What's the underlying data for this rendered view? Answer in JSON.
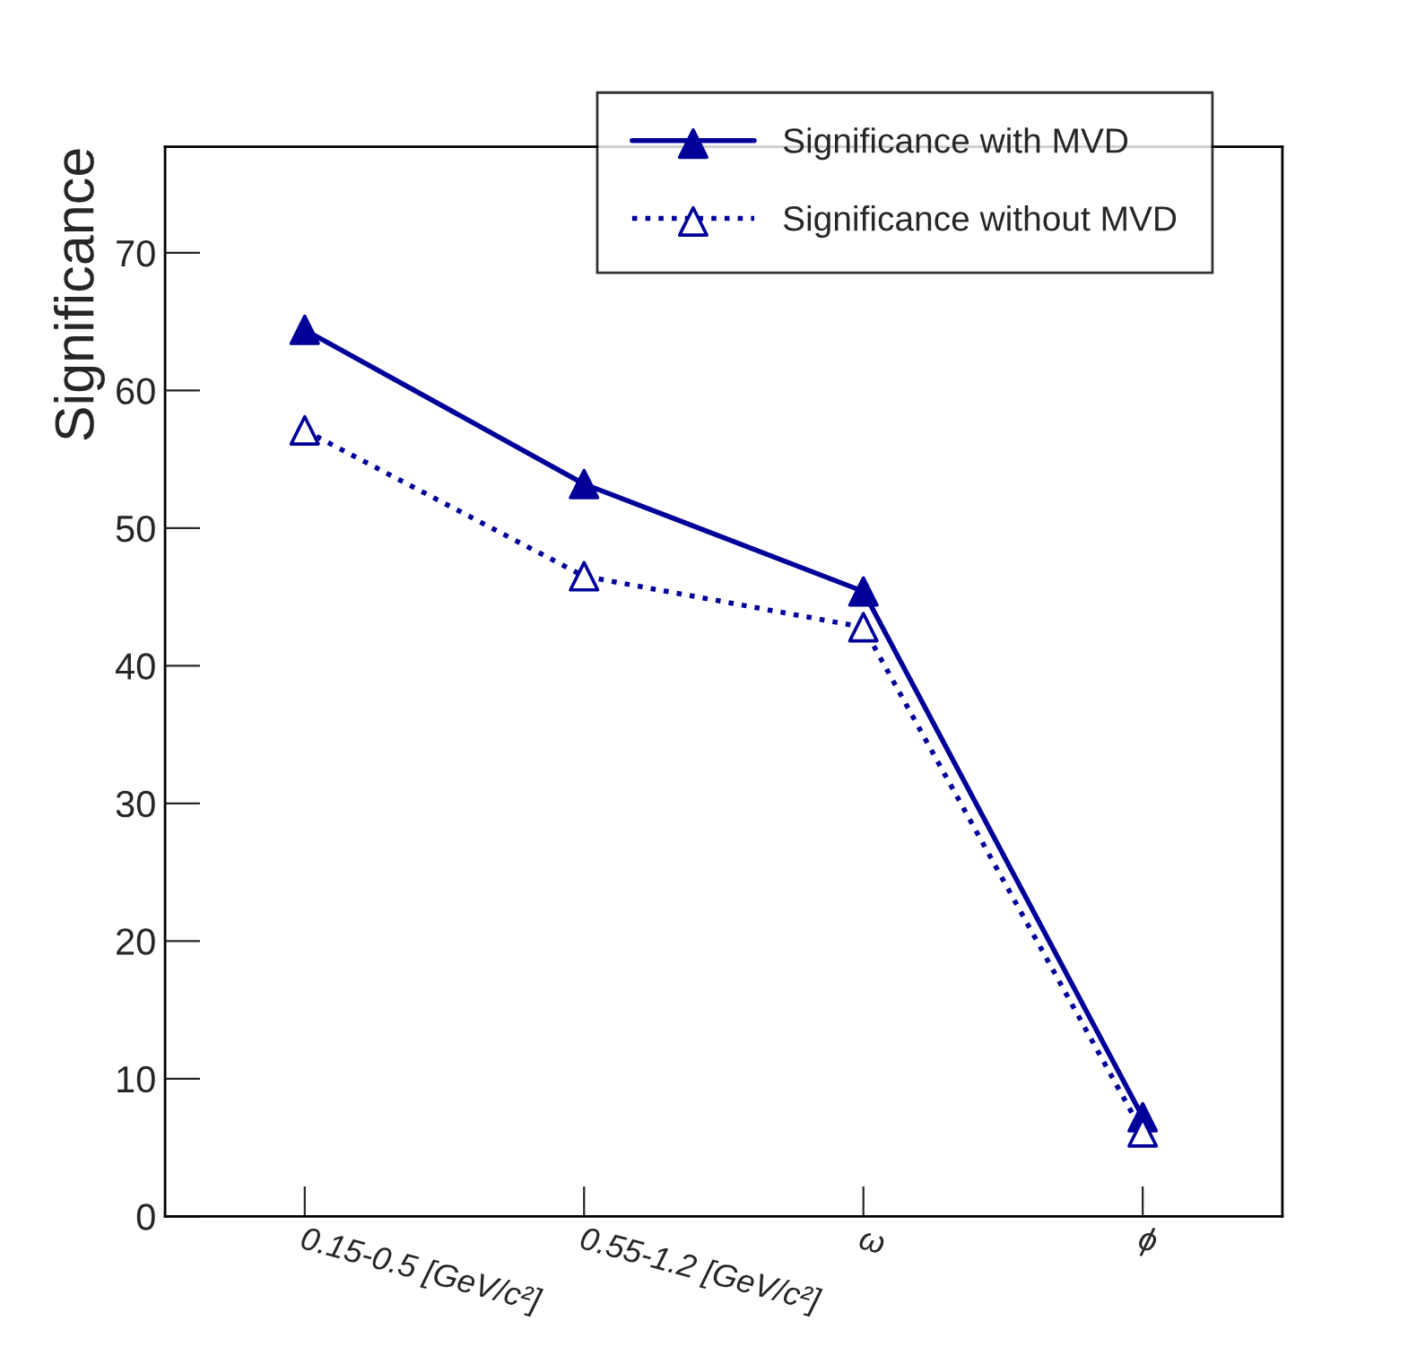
{
  "chart_data": {
    "type": "line",
    "ylabel": "Significance",
    "categories": [
      "0.15-0.5 [GeV/c²]",
      "0.55-1.2 [GeV/c²]",
      "ω",
      "ϕ"
    ],
    "series": [
      {
        "name": "Significance with MVD",
        "color": "#000099",
        "values": [
          64.4,
          53.2,
          45.4,
          7.2
        ],
        "line_style": "solid",
        "marker": "triangle"
      },
      {
        "name": "Significance without MVD",
        "color": "#000099",
        "values": [
          57.1,
          46.5,
          42.8,
          6.1
        ],
        "line_style": "dotted",
        "marker": "triangle"
      }
    ],
    "ylim": [
      0,
      77.7
    ],
    "yticks": [
      0,
      10,
      20,
      30,
      40,
      50,
      60,
      70
    ],
    "grid": false,
    "legend": "top right"
  }
}
